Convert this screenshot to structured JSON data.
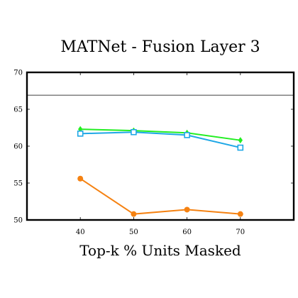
{
  "chart_data": {
    "type": "line",
    "title": "MATNet - Fusion Layer 3",
    "xlabel": "Top-k % Units Masked",
    "ylabel": "",
    "xlim": [
      30,
      80
    ],
    "ylim": [
      50,
      70
    ],
    "xticks": [
      40,
      50,
      60,
      70
    ],
    "yticks": [
      50,
      55,
      60,
      65,
      70
    ],
    "grid": false,
    "reference_line": {
      "y": 66.9,
      "color": "#808080"
    },
    "series": [
      {
        "marker": "diamond",
        "color": "#22ee22",
        "x": [
          40,
          50,
          60,
          70
        ],
        "y": [
          62.3,
          62.1,
          61.8,
          60.8
        ]
      },
      {
        "marker": "square",
        "color": "#1ea7e6",
        "x": [
          40,
          50,
          60,
          70
        ],
        "y": [
          61.7,
          61.9,
          61.5,
          59.8
        ]
      },
      {
        "marker": "circle",
        "color": "#f58212",
        "x": [
          40,
          50,
          60,
          70
        ],
        "y": [
          55.6,
          50.8,
          51.4,
          50.8
        ]
      }
    ]
  }
}
